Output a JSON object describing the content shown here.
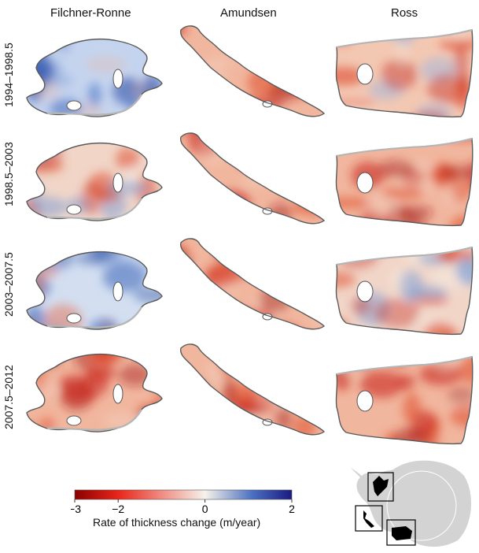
{
  "columns": [
    {
      "title": "Filchner-Ronne"
    },
    {
      "title": "Amundsen"
    },
    {
      "title": "Ross"
    }
  ],
  "rows": [
    {
      "label": "1994–1998.5",
      "tone": [
        "blue",
        "red",
        "mixed-red"
      ]
    },
    {
      "label": "1998.5–2003",
      "tone": [
        "mixed",
        "red",
        "red"
      ]
    },
    {
      "label": "2003–2007.5",
      "tone": [
        "mixed-blue",
        "red",
        "mixed"
      ]
    },
    {
      "label": "2007.5–2012",
      "tone": [
        "red",
        "red",
        "red"
      ]
    }
  ],
  "colorbar": {
    "title": "Rate of thickness change (m/year)",
    "ticks": [
      "−3",
      "−2",
      "0",
      "2"
    ],
    "tick_values": [
      -3,
      -2,
      0,
      2
    ],
    "range": [
      -3,
      2
    ],
    "colors": [
      "#8b0000",
      "#e8261a",
      "#f7f2ea",
      "#4a6fc0",
      "#1a1a80"
    ]
  },
  "inset": {
    "name": "antarctica-locator-map",
    "land_color": "#d3d3d3",
    "highlight_color": "#000000"
  }
}
